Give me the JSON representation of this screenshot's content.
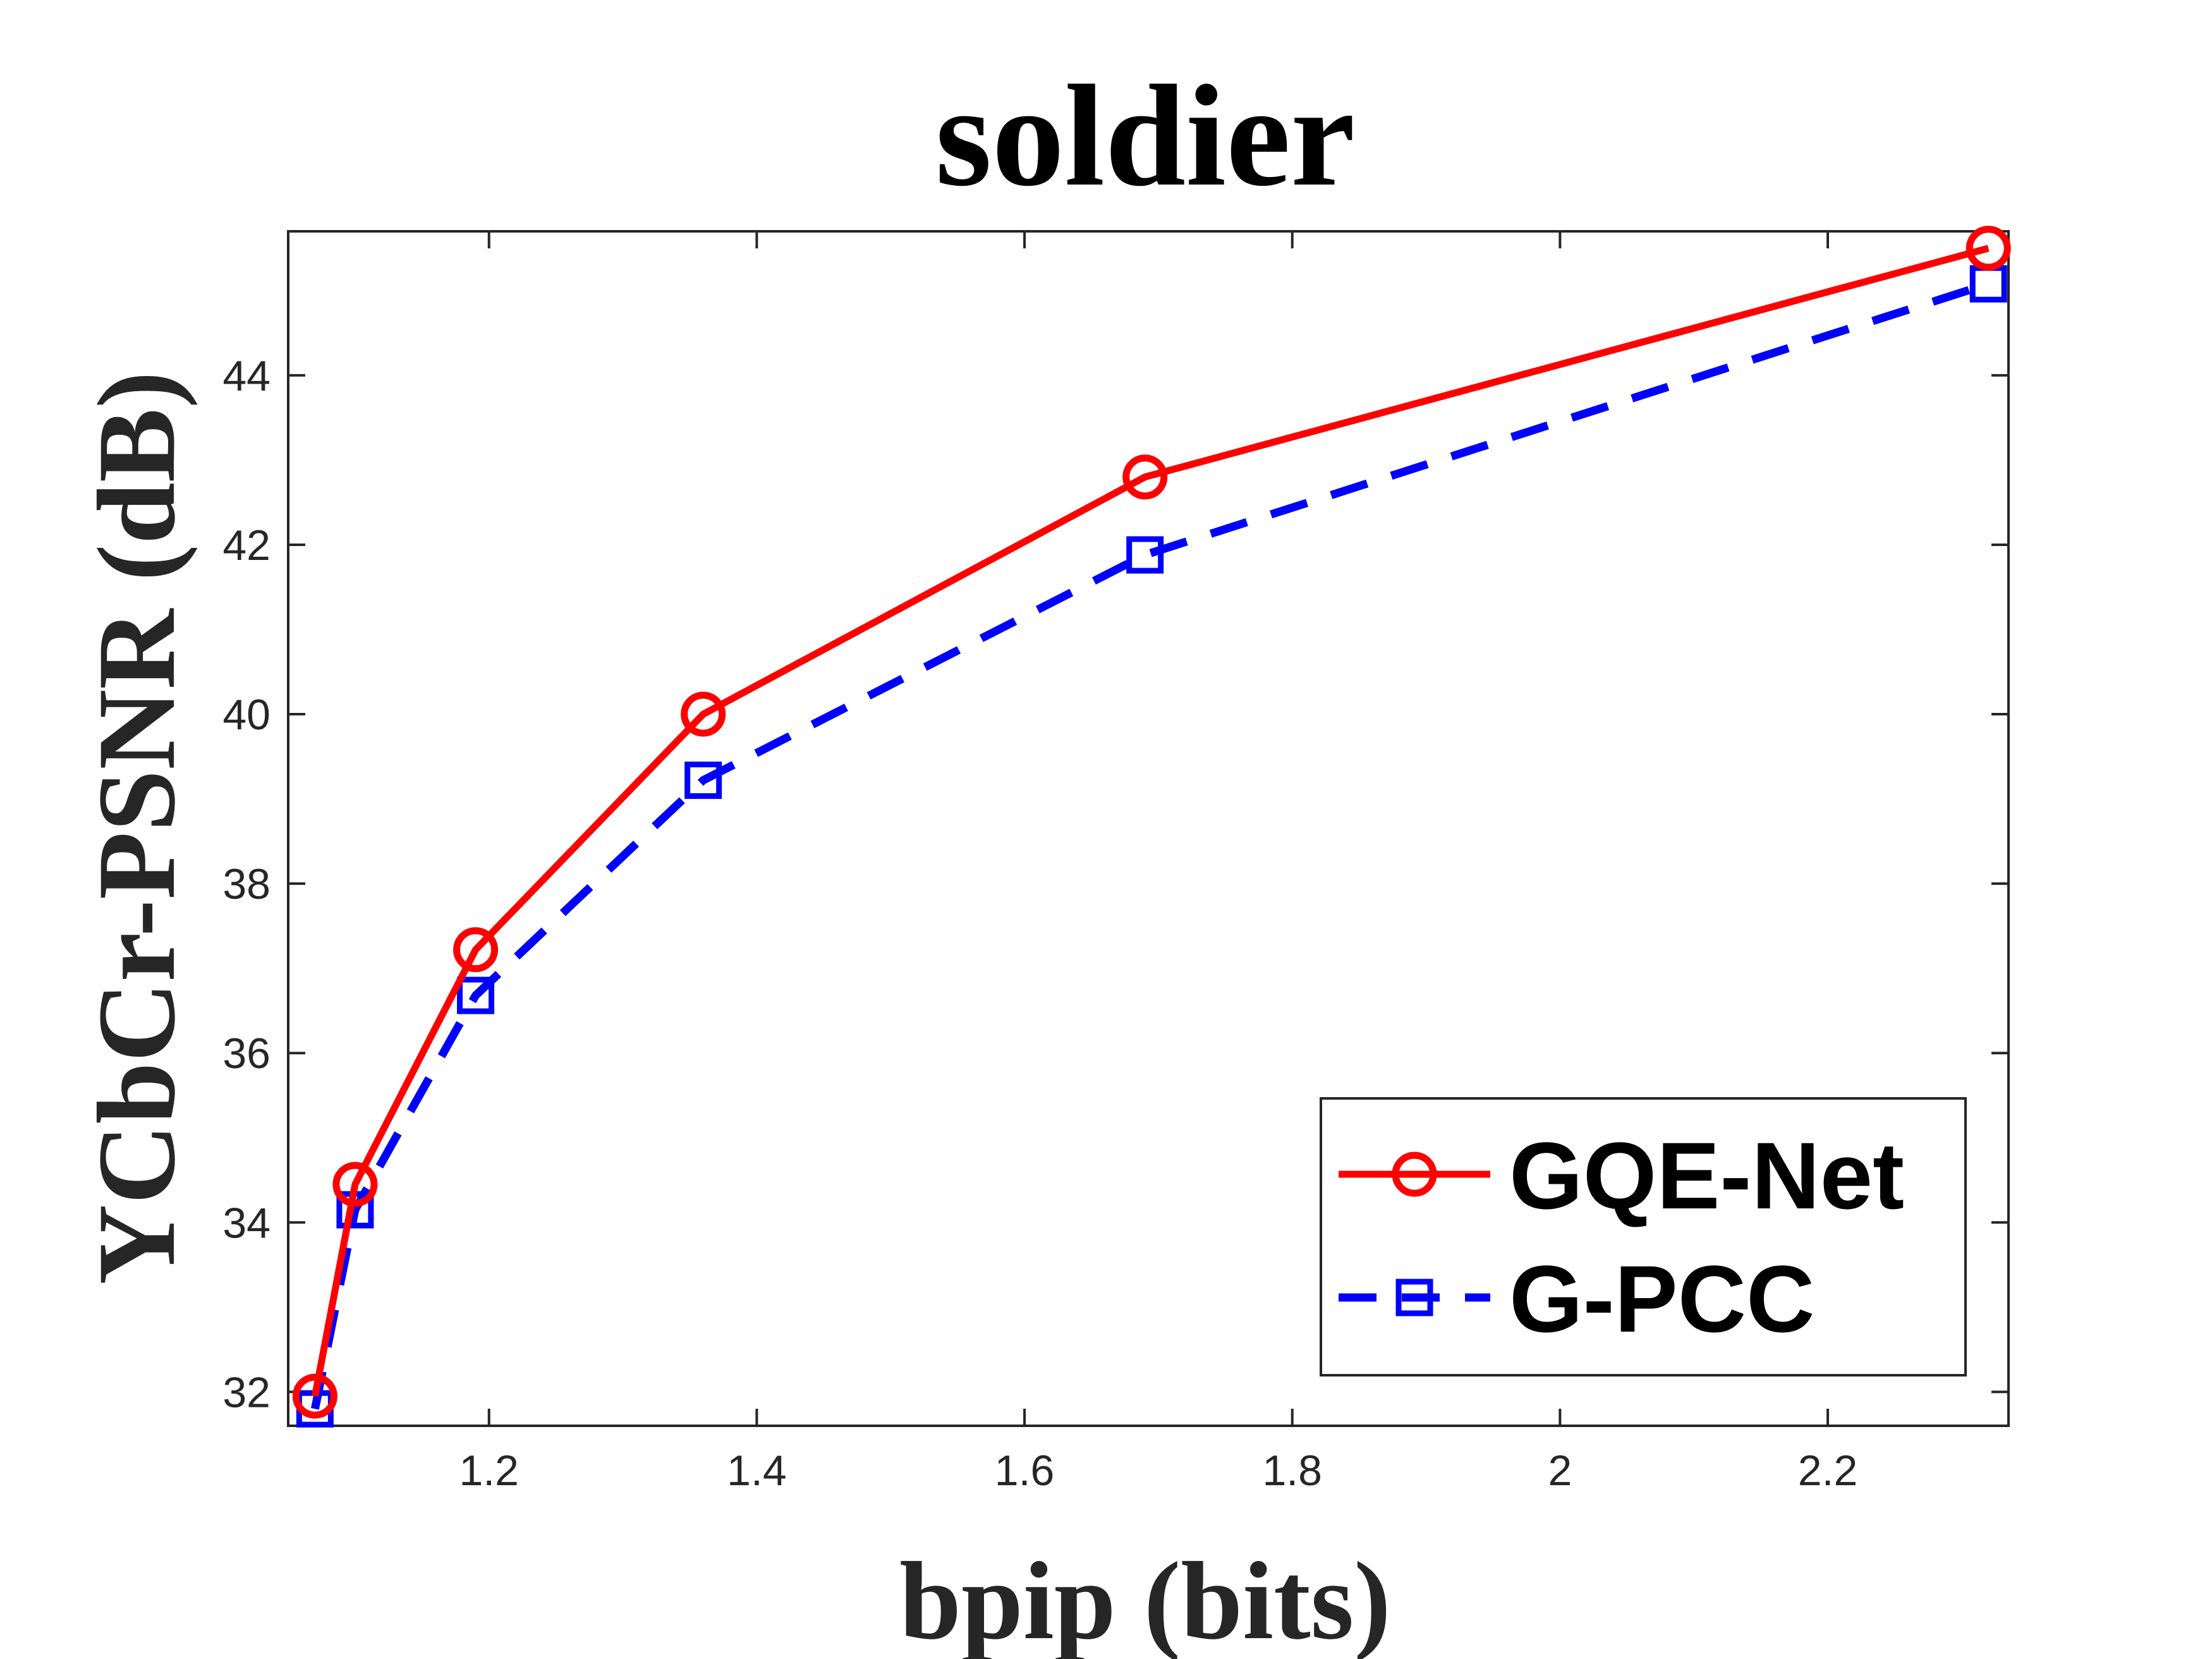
{
  "chart_data": {
    "type": "line",
    "title": "soldier",
    "xlabel": "bpip (bits)",
    "ylabel": "YCbCr-PSNR (dB)",
    "xlim": [
      1.05,
      2.335
    ],
    "ylim": [
      31.6,
      45.7
    ],
    "xticks": [
      1.2,
      1.4,
      1.6,
      1.8,
      2,
      2.2
    ],
    "xtick_labels": [
      "1.2",
      "1.4",
      "1.6",
      "1.8",
      "2",
      "2.2"
    ],
    "yticks": [
      32,
      34,
      36,
      38,
      40,
      42,
      44
    ],
    "ytick_labels": [
      "32",
      "34",
      "36",
      "38",
      "40",
      "42",
      "44"
    ],
    "grid": false,
    "legend_position": "bottom-right",
    "series": [
      {
        "name": "GQE-Net",
        "color": "#ff0000",
        "line_style": "solid",
        "marker": "circle",
        "x": [
          1.07,
          1.1,
          1.19,
          1.36,
          1.69,
          2.32
        ],
        "y": [
          31.95,
          34.45,
          37.22,
          40.0,
          42.8,
          45.5
        ]
      },
      {
        "name": "G-PCC",
        "color": "#0000ff",
        "line_style": "dashed",
        "marker": "square",
        "x": [
          1.07,
          1.1,
          1.19,
          1.36,
          1.69,
          2.32
        ],
        "y": [
          31.8,
          34.15,
          36.68,
          39.22,
          41.88,
          45.08
        ]
      }
    ]
  }
}
